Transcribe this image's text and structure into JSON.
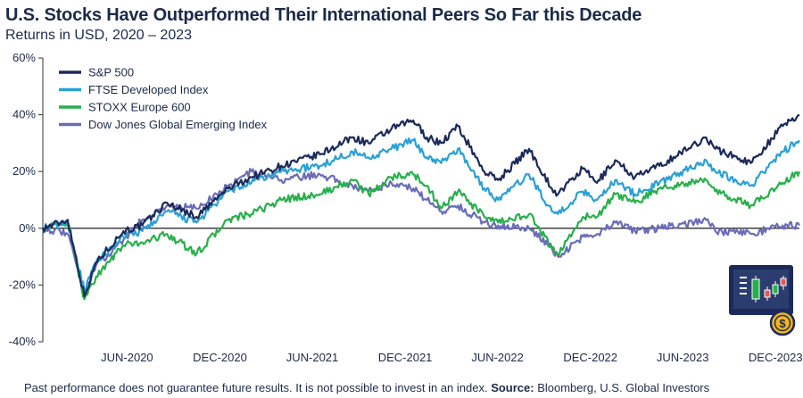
{
  "header": {
    "title": "U.S. Stocks Have Outperformed Their International Peers So Far this Decade",
    "subtitle": "Returns in USD, 2020 – 2023"
  },
  "footer": {
    "disclaimer": "Past performance does not guarantee future results. It is not possible to invest in an index. ",
    "source_label": "Source:",
    "source_value": " Bloomberg, U.S. Global Investors"
  },
  "logo": {
    "icon": "trading-chart-coin-icon"
  },
  "chart_data": {
    "type": "line",
    "title": "U.S. Stocks Have Outperformed Their International Peers So Far this Decade",
    "subtitle": "Returns in USD, 2020 – 2023",
    "ylim": [
      -40,
      60
    ],
    "y_ticks": [
      -40,
      -20,
      0,
      20,
      40,
      60
    ],
    "y_tick_labels": [
      "-40%",
      "-20%",
      "0%",
      "20%",
      "40%",
      "60%"
    ],
    "x_range": [
      "2020-01-01",
      "2024-01-31"
    ],
    "x_ticks": [
      {
        "date": "2020-06-15",
        "label": "JUN-2020"
      },
      {
        "date": "2020-12-15",
        "label": "DEC-2020"
      },
      {
        "date": "2021-06-15",
        "label": "JUN-2021"
      },
      {
        "date": "2021-12-15",
        "label": "DEC-2021"
      },
      {
        "date": "2022-06-15",
        "label": "JUN-2022"
      },
      {
        "date": "2022-12-15",
        "label": "DEC-2022"
      },
      {
        "date": "2023-06-15",
        "label": "JUN-2023"
      },
      {
        "date": "2023-12-15",
        "label": "DEC-2023"
      }
    ],
    "grid": false,
    "zero_line": true,
    "legend_position": "top-left",
    "series": [
      {
        "name": "S&P 500",
        "color": "#1b2a5a",
        "points": [
          [
            "2020-01-01",
            0
          ],
          [
            "2020-02-19",
            3
          ],
          [
            "2020-03-23",
            -24
          ],
          [
            "2020-04-15",
            -12
          ],
          [
            "2020-06-08",
            -1
          ],
          [
            "2020-07-15",
            1
          ],
          [
            "2020-09-02",
            9
          ],
          [
            "2020-10-30",
            4
          ],
          [
            "2020-12-31",
            14
          ],
          [
            "2021-02-15",
            18
          ],
          [
            "2021-04-15",
            22
          ],
          [
            "2021-06-30",
            26
          ],
          [
            "2021-09-02",
            32
          ],
          [
            "2021-10-04",
            30
          ],
          [
            "2021-11-18",
            35
          ],
          [
            "2021-12-31",
            38
          ],
          [
            "2022-01-27",
            32
          ],
          [
            "2022-02-24",
            30
          ],
          [
            "2022-03-29",
            36
          ],
          [
            "2022-05-20",
            20
          ],
          [
            "2022-06-16",
            17
          ],
          [
            "2022-08-16",
            28
          ],
          [
            "2022-09-30",
            14
          ],
          [
            "2022-10-12",
            12
          ],
          [
            "2022-11-30",
            21
          ],
          [
            "2022-12-28",
            16
          ],
          [
            "2023-02-02",
            24
          ],
          [
            "2023-03-13",
            18
          ],
          [
            "2023-04-30",
            22
          ],
          [
            "2023-07-31",
            32
          ],
          [
            "2023-08-18",
            28
          ],
          [
            "2023-10-27",
            23
          ],
          [
            "2023-12-29",
            36
          ],
          [
            "2024-01-31",
            40
          ]
        ]
      },
      {
        "name": "FTSE Developed Index",
        "color": "#2aa0d6",
        "points": [
          [
            "2020-01-01",
            0
          ],
          [
            "2020-02-19",
            2
          ],
          [
            "2020-03-23",
            -22
          ],
          [
            "2020-04-15",
            -12
          ],
          [
            "2020-06-08",
            -3
          ],
          [
            "2020-07-15",
            -1
          ],
          [
            "2020-09-02",
            6
          ],
          [
            "2020-10-30",
            2
          ],
          [
            "2020-12-31",
            13
          ],
          [
            "2021-02-15",
            16
          ],
          [
            "2021-04-15",
            20
          ],
          [
            "2021-06-30",
            22
          ],
          [
            "2021-09-02",
            27
          ],
          [
            "2021-10-04",
            25
          ],
          [
            "2021-11-18",
            28
          ],
          [
            "2021-12-31",
            31
          ],
          [
            "2022-01-27",
            25
          ],
          [
            "2022-02-24",
            23
          ],
          [
            "2022-03-29",
            28
          ],
          [
            "2022-05-20",
            14
          ],
          [
            "2022-06-16",
            10
          ],
          [
            "2022-08-16",
            19
          ],
          [
            "2022-09-30",
            6
          ],
          [
            "2022-10-12",
            5
          ],
          [
            "2022-11-30",
            13
          ],
          [
            "2022-12-28",
            10
          ],
          [
            "2023-02-02",
            17
          ],
          [
            "2023-03-13",
            12
          ],
          [
            "2023-04-30",
            16
          ],
          [
            "2023-07-31",
            24
          ],
          [
            "2023-08-18",
            20
          ],
          [
            "2023-10-27",
            15
          ],
          [
            "2023-12-29",
            27
          ],
          [
            "2024-01-31",
            31
          ]
        ]
      },
      {
        "name": "STOXX Europe 600",
        "color": "#27b04a",
        "points": [
          [
            "2020-01-01",
            0
          ],
          [
            "2020-02-19",
            2
          ],
          [
            "2020-03-23",
            -25
          ],
          [
            "2020-04-15",
            -17
          ],
          [
            "2020-06-08",
            -6
          ],
          [
            "2020-07-15",
            -5
          ],
          [
            "2020-09-02",
            -2
          ],
          [
            "2020-10-30",
            -9
          ],
          [
            "2020-12-31",
            3
          ],
          [
            "2021-02-15",
            5
          ],
          [
            "2021-04-15",
            10
          ],
          [
            "2021-06-30",
            12
          ],
          [
            "2021-09-02",
            17
          ],
          [
            "2021-10-04",
            12
          ],
          [
            "2021-11-18",
            18
          ],
          [
            "2021-12-31",
            19
          ],
          [
            "2022-01-27",
            15
          ],
          [
            "2022-02-24",
            7
          ],
          [
            "2022-03-29",
            13
          ],
          [
            "2022-05-20",
            4
          ],
          [
            "2022-06-16",
            2
          ],
          [
            "2022-08-16",
            5
          ],
          [
            "2022-09-30",
            -7
          ],
          [
            "2022-10-12",
            -9
          ],
          [
            "2022-11-30",
            4
          ],
          [
            "2022-12-28",
            4
          ],
          [
            "2023-02-02",
            12
          ],
          [
            "2023-03-13",
            9
          ],
          [
            "2023-04-30",
            14
          ],
          [
            "2023-07-31",
            17
          ],
          [
            "2023-08-18",
            13
          ],
          [
            "2023-10-27",
            8
          ],
          [
            "2023-12-29",
            16
          ],
          [
            "2024-01-31",
            20
          ]
        ]
      },
      {
        "name": "Dow Jones Global Emerging Index",
        "color": "#6a6cb8",
        "points": [
          [
            "2020-01-01",
            0
          ],
          [
            "2020-02-19",
            -2
          ],
          [
            "2020-03-23",
            -23
          ],
          [
            "2020-04-15",
            -13
          ],
          [
            "2020-06-08",
            -4
          ],
          [
            "2020-07-15",
            3
          ],
          [
            "2020-09-02",
            8
          ],
          [
            "2020-10-30",
            7
          ],
          [
            "2020-12-31",
            15
          ],
          [
            "2021-02-15",
            20
          ],
          [
            "2021-04-15",
            17
          ],
          [
            "2021-06-30",
            19
          ],
          [
            "2021-09-02",
            15
          ],
          [
            "2021-10-04",
            13
          ],
          [
            "2021-11-18",
            16
          ],
          [
            "2021-12-31",
            14
          ],
          [
            "2022-01-27",
            10
          ],
          [
            "2022-02-24",
            6
          ],
          [
            "2022-03-29",
            8
          ],
          [
            "2022-05-20",
            2
          ],
          [
            "2022-06-16",
            1
          ],
          [
            "2022-08-16",
            0
          ],
          [
            "2022-09-30",
            -7
          ],
          [
            "2022-10-12",
            -10
          ],
          [
            "2022-11-30",
            -3
          ],
          [
            "2022-12-28",
            -2
          ],
          [
            "2023-02-02",
            2
          ],
          [
            "2023-03-13",
            -1
          ],
          [
            "2023-04-30",
            0
          ],
          [
            "2023-07-31",
            3
          ],
          [
            "2023-08-18",
            -1
          ],
          [
            "2023-10-27",
            -2
          ],
          [
            "2023-12-29",
            1
          ],
          [
            "2024-01-31",
            1
          ]
        ]
      }
    ]
  }
}
